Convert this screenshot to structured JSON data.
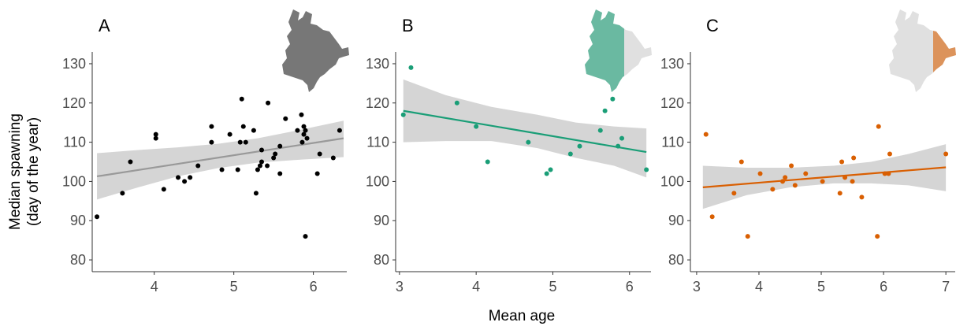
{
  "figure": {
    "xlabel": "Mean age",
    "ylabel_line1": "Median spawning",
    "ylabel_line2": "(day of the year)"
  },
  "chart_data": [
    {
      "type": "scatter",
      "panel": "A",
      "color": "#000000",
      "trend_color": "#999999",
      "band_color": "#d3d3d3",
      "xlim": [
        3.22,
        6.42
      ],
      "ylim": [
        77,
        133
      ],
      "xticks": [
        4,
        5,
        6
      ],
      "yticks": [
        80,
        90,
        100,
        110,
        120,
        130
      ],
      "map_highlight": "whole region",
      "points": [
        [
          3.28,
          91
        ],
        [
          3.6,
          97
        ],
        [
          3.7,
          105
        ],
        [
          4.02,
          111
        ],
        [
          4.02,
          112
        ],
        [
          4.12,
          98
        ],
        [
          4.3,
          101
        ],
        [
          4.38,
          100
        ],
        [
          4.45,
          101
        ],
        [
          4.55,
          104
        ],
        [
          4.72,
          110
        ],
        [
          4.72,
          114
        ],
        [
          4.85,
          103
        ],
        [
          4.95,
          112
        ],
        [
          5.05,
          103
        ],
        [
          5.08,
          110
        ],
        [
          5.1,
          121
        ],
        [
          5.12,
          114
        ],
        [
          5.15,
          110
        ],
        [
          5.25,
          113
        ],
        [
          5.28,
          97
        ],
        [
          5.3,
          103
        ],
        [
          5.33,
          104
        ],
        [
          5.35,
          105
        ],
        [
          5.35,
          108
        ],
        [
          5.42,
          104
        ],
        [
          5.43,
          120
        ],
        [
          5.5,
          106
        ],
        [
          5.52,
          107
        ],
        [
          5.58,
          109
        ],
        [
          5.58,
          102
        ],
        [
          5.65,
          116
        ],
        [
          5.8,
          113
        ],
        [
          5.85,
          117
        ],
        [
          5.86,
          110
        ],
        [
          5.88,
          114
        ],
        [
          5.88,
          112
        ],
        [
          5.9,
          113
        ],
        [
          5.9,
          86
        ],
        [
          5.92,
          111
        ],
        [
          6.05,
          102
        ],
        [
          6.08,
          107
        ],
        [
          6.25,
          106
        ],
        [
          6.33,
          113
        ]
      ],
      "trend": {
        "x": [
          3.28,
          6.38
        ],
        "y": [
          101.3,
          111.0
        ]
      },
      "band_upper": [
        [
          3.28,
          107.2
        ],
        [
          3.8,
          108.0
        ],
        [
          4.3,
          108.7
        ],
        [
          4.8,
          109.6
        ],
        [
          5.3,
          111.0
        ],
        [
          5.8,
          113.0
        ],
        [
          6.38,
          115.5
        ]
      ],
      "band_lower": [
        [
          3.28,
          95.4
        ],
        [
          3.8,
          98.5
        ],
        [
          4.3,
          101.3
        ],
        [
          4.8,
          103.4
        ],
        [
          5.3,
          104.8
        ],
        [
          5.8,
          105.5
        ],
        [
          6.38,
          106.2
        ]
      ]
    },
    {
      "type": "scatter",
      "panel": "B",
      "color": "#1a9e77",
      "trend_color": "#1a9e77",
      "band_color": "#d3d3d3",
      "xlim": [
        2.95,
        6.28
      ],
      "ylim": [
        77,
        133
      ],
      "xticks": [
        3,
        4,
        5,
        6
      ],
      "yticks": [
        80,
        90,
        100,
        110,
        120,
        130
      ],
      "map_highlight": "west",
      "points": [
        [
          3.05,
          117
        ],
        [
          3.15,
          129
        ],
        [
          3.75,
          120
        ],
        [
          4.0,
          114
        ],
        [
          4.15,
          105
        ],
        [
          4.68,
          110
        ],
        [
          4.92,
          102
        ],
        [
          4.97,
          103
        ],
        [
          5.23,
          107
        ],
        [
          5.35,
          109
        ],
        [
          5.62,
          113
        ],
        [
          5.68,
          118
        ],
        [
          5.78,
          121
        ],
        [
          5.85,
          109
        ],
        [
          5.9,
          111
        ],
        [
          6.22,
          103
        ]
      ],
      "trend": {
        "x": [
          3.05,
          6.22
        ],
        "y": [
          118.0,
          107.5
        ]
      },
      "band_upper": [
        [
          3.05,
          126.0
        ],
        [
          3.6,
          122.0
        ],
        [
          4.2,
          119.0
        ],
        [
          4.8,
          117.0
        ],
        [
          5.3,
          115.0
        ],
        [
          5.8,
          114.0
        ],
        [
          6.22,
          113.5
        ]
      ],
      "band_lower": [
        [
          3.05,
          110.0
        ],
        [
          3.6,
          110.3
        ],
        [
          4.2,
          110.3
        ],
        [
          4.8,
          108.5
        ],
        [
          5.3,
          106.0
        ],
        [
          5.8,
          104.0
        ],
        [
          6.22,
          101.0
        ]
      ]
    },
    {
      "type": "scatter",
      "panel": "C",
      "color": "#d95f02",
      "trend_color": "#d95f02",
      "band_color": "#d3d3d3",
      "xlim": [
        2.9,
        7.15
      ],
      "ylim": [
        77,
        133
      ],
      "xticks": [
        3,
        4,
        5,
        6,
        7
      ],
      "yticks": [
        80,
        90,
        100,
        110,
        120,
        130
      ],
      "map_highlight": "east",
      "points": [
        [
          3.15,
          112
        ],
        [
          3.25,
          91
        ],
        [
          3.6,
          97
        ],
        [
          3.72,
          105
        ],
        [
          3.82,
          86
        ],
        [
          4.02,
          102
        ],
        [
          4.22,
          98
        ],
        [
          4.38,
          100
        ],
        [
          4.42,
          101
        ],
        [
          4.52,
          104
        ],
        [
          4.58,
          99
        ],
        [
          4.75,
          102
        ],
        [
          5.02,
          100
        ],
        [
          5.3,
          97
        ],
        [
          5.33,
          105
        ],
        [
          5.38,
          101
        ],
        [
          5.5,
          100
        ],
        [
          5.52,
          106
        ],
        [
          5.65,
          96
        ],
        [
          5.9,
          86
        ],
        [
          5.92,
          114
        ],
        [
          6.02,
          102
        ],
        [
          6.08,
          102
        ],
        [
          6.1,
          107
        ],
        [
          7.0,
          107
        ]
      ],
      "trend": {
        "x": [
          3.1,
          7.0
        ],
        "y": [
          98.5,
          103.6
        ]
      },
      "band_upper": [
        [
          3.1,
          104.0
        ],
        [
          3.8,
          103.5
        ],
        [
          4.5,
          103.5
        ],
        [
          5.2,
          104.0
        ],
        [
          5.8,
          105.0
        ],
        [
          6.4,
          107.0
        ],
        [
          7.0,
          109.5
        ]
      ],
      "band_lower": [
        [
          3.1,
          93.0
        ],
        [
          3.8,
          96.5
        ],
        [
          4.5,
          98.5
        ],
        [
          5.2,
          99.5
        ],
        [
          5.8,
          99.5
        ],
        [
          6.4,
          99.0
        ],
        [
          7.0,
          97.5
        ]
      ]
    }
  ]
}
